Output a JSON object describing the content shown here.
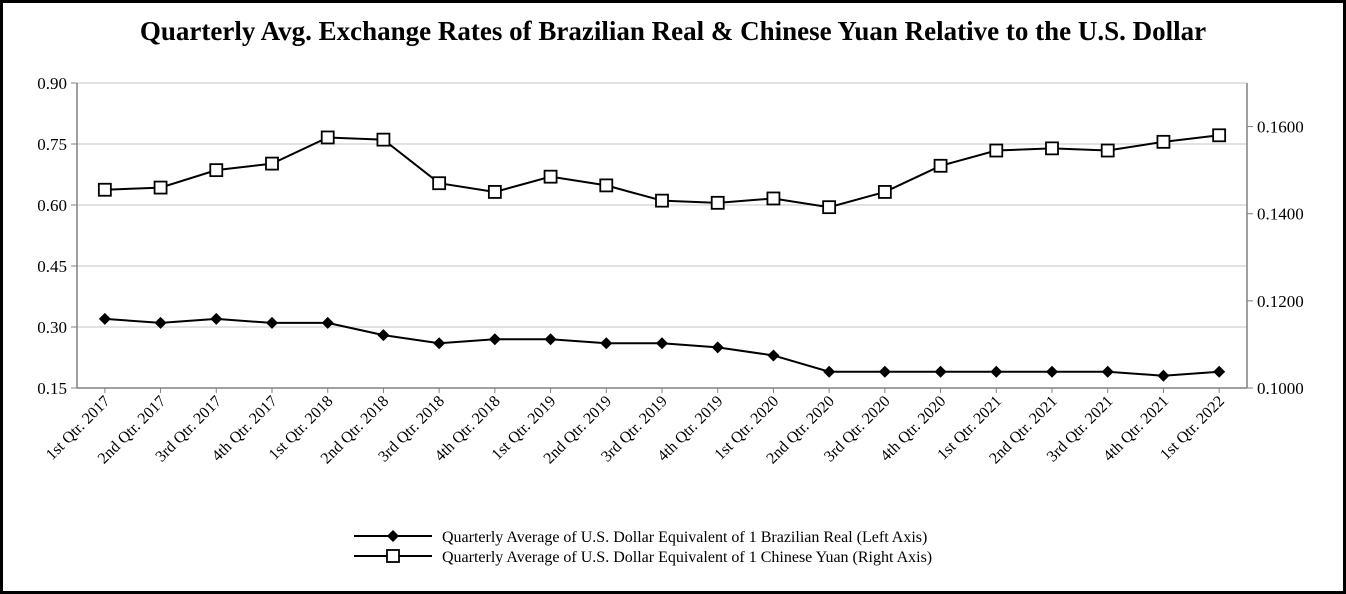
{
  "chart_data": {
    "type": "line",
    "title": "Quarterly Avg. Exchange Rates of Brazilian Real & Chinese Yuan Relative to the U.S. Dollar",
    "categories": [
      "1st Qtr. 2017",
      "2nd Qtr. 2017",
      "3rd Qtr. 2017",
      "4th Qtr. 2017",
      "1st Qtr. 2018",
      "2nd Qtr. 2018",
      "3rd Qtr. 2018",
      "4th Qtr. 2018",
      "1st Qtr. 2019",
      "2nd Qtr. 2019",
      "3rd Qtr. 2019",
      "4th Qtr. 2019",
      "1st Qtr. 2020",
      "2nd Qtr. 2020",
      "3rd Qtr. 2020",
      "4th Qtr. 2020",
      "1st Qtr. 2021",
      "2nd Qtr. 2021",
      "3rd Qtr. 2021",
      "4th Qtr. 2021",
      "1st Qtr. 2022"
    ],
    "left_axis": {
      "ylim": [
        0.15,
        0.9
      ],
      "ticks": [
        "0.15",
        "0.30",
        "0.45",
        "0.60",
        "0.75",
        "0.90"
      ],
      "tick_values": [
        0.15,
        0.3,
        0.45,
        0.6,
        0.75,
        0.9
      ]
    },
    "right_axis": {
      "ylim": [
        0.1,
        0.17
      ],
      "ticks": [
        "0.1000",
        "0.1200",
        "0.1400",
        "0.1600"
      ],
      "tick_values": [
        0.1,
        0.12,
        0.14,
        0.16
      ]
    },
    "grid": true,
    "legend_position": "bottom-center",
    "series": [
      {
        "name": "Quarterly Average of U.S. Dollar Equivalent of 1 Brazilian Real (Left Axis)",
        "axis": "left",
        "marker": "filled-diamond",
        "values": [
          0.32,
          0.31,
          0.32,
          0.31,
          0.31,
          0.28,
          0.26,
          0.27,
          0.27,
          0.26,
          0.26,
          0.25,
          0.23,
          0.19,
          0.19,
          0.19,
          0.19,
          0.19,
          0.19,
          0.18,
          0.19
        ]
      },
      {
        "name": "Quarterly Average of U.S. Dollar Equivalent of 1 Chinese Yuan (Right Axis)",
        "axis": "right",
        "marker": "open-square",
        "values": [
          0.1455,
          0.146,
          0.15,
          0.1515,
          0.1575,
          0.157,
          0.147,
          0.145,
          0.1485,
          0.1465,
          0.143,
          0.1425,
          0.1435,
          0.1415,
          0.145,
          0.151,
          0.1545,
          0.155,
          0.1545,
          0.1565,
          0.158
        ]
      }
    ]
  }
}
